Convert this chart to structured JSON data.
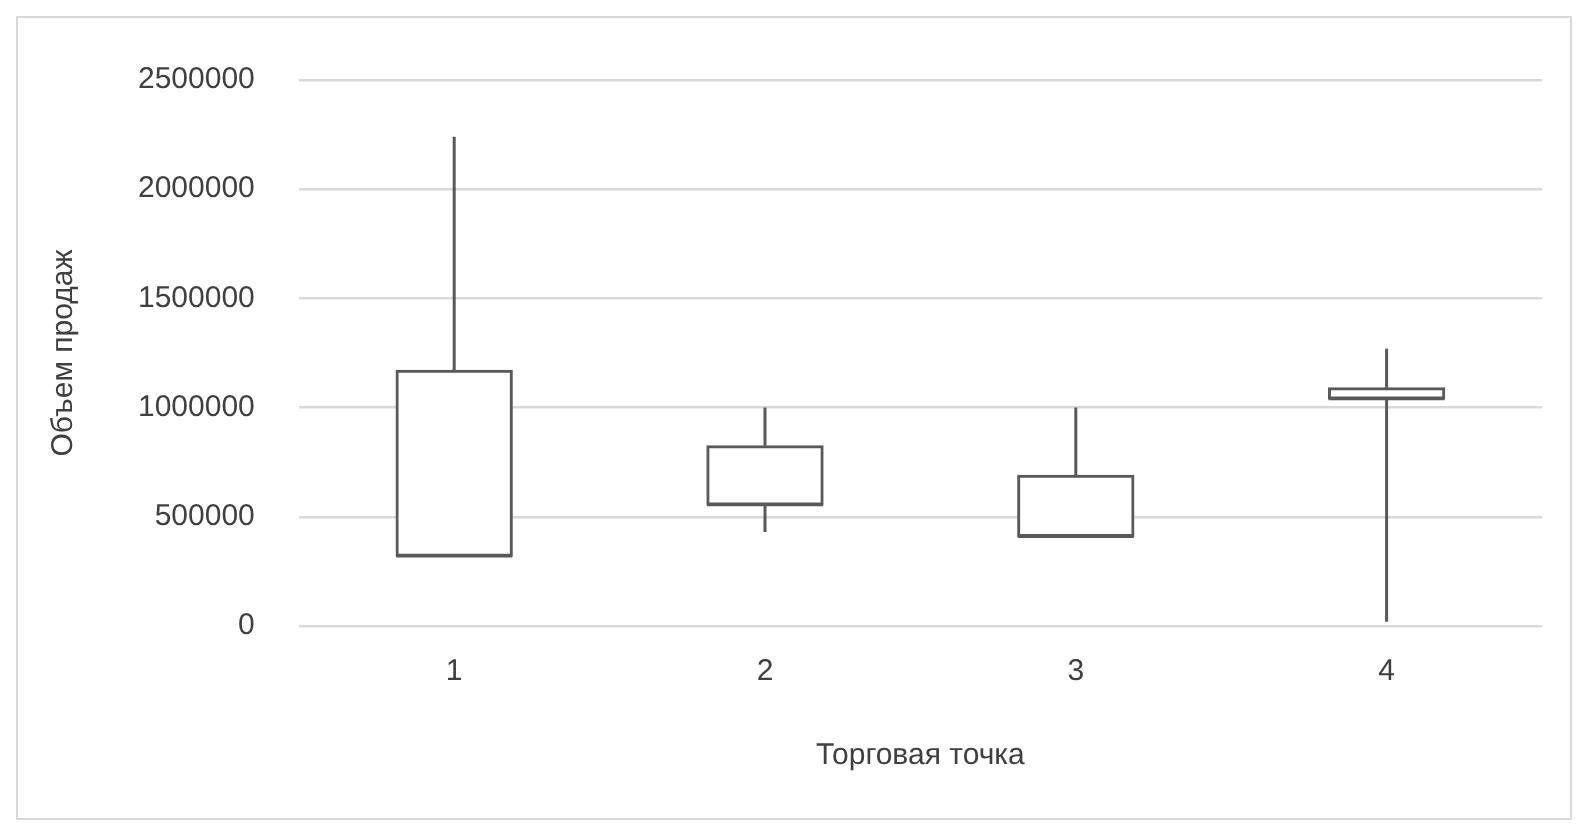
{
  "chart_data": {
    "type": "box",
    "xlabel": "Торговая точка",
    "ylabel": "Объем продаж",
    "categories": [
      "1",
      "2",
      "3",
      "4"
    ],
    "boxes": [
      {
        "low": 320000,
        "q1": 320000,
        "median": 320000,
        "q3": 1170000,
        "high": 2240000
      },
      {
        "low": 430000,
        "q1": 555000,
        "median": 555000,
        "q3": 825000,
        "high": 1000000
      },
      {
        "low": 410000,
        "q1": 410000,
        "median": 410000,
        "q3": 690000,
        "high": 1000000
      },
      {
        "low": 20000,
        "q1": 1040000,
        "median": 1040000,
        "q3": 1090000,
        "high": 1270000
      }
    ],
    "color": "#595959",
    "ylim": [
      0,
      2500000
    ],
    "yticks": [
      0,
      500000,
      1000000,
      1500000,
      2000000,
      2500000
    ],
    "grid": "y",
    "legend": false
  }
}
